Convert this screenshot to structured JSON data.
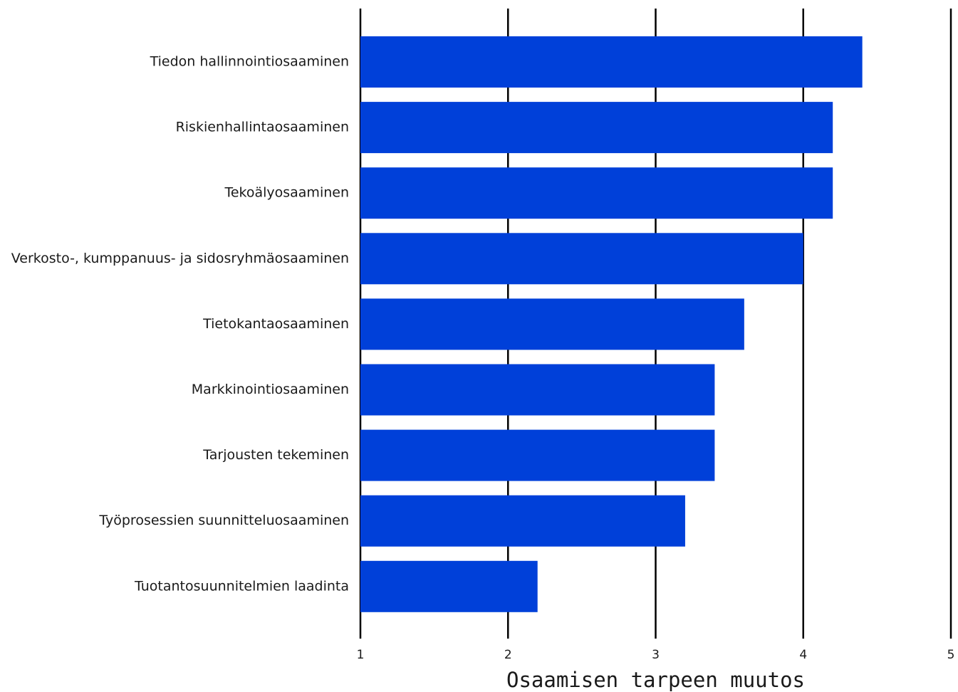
{
  "chart_data": {
    "type": "bar",
    "orientation": "horizontal",
    "categories": [
      "Tiedon hallinnointiosaaminen",
      "Riskienhallintaosaaminen",
      "Tekoälyosaaminen",
      "Verkosto-, kumppanuus- ja sidosryhmäosaaminen",
      "Tietokantaosaaminen",
      "Markkinointiosaaminen",
      "Tarjousten tekeminen",
      "Työprosessien suunnitteluosaaminen",
      "Tuotantosuunnitelmien laadinta"
    ],
    "values": [
      4.4,
      4.2,
      4.2,
      4.0,
      3.6,
      3.4,
      3.4,
      3.2,
      2.2
    ],
    "title": "",
    "xlabel": "Osaamisen tarpeen muutos",
    "ylabel": "",
    "xlim": [
      1,
      5
    ],
    "xticks": [
      "1",
      "2",
      "3",
      "4",
      "5"
    ],
    "grid": "vertical",
    "legend": "none",
    "bar_color": "#0040d9",
    "grid_color": "#000000"
  }
}
